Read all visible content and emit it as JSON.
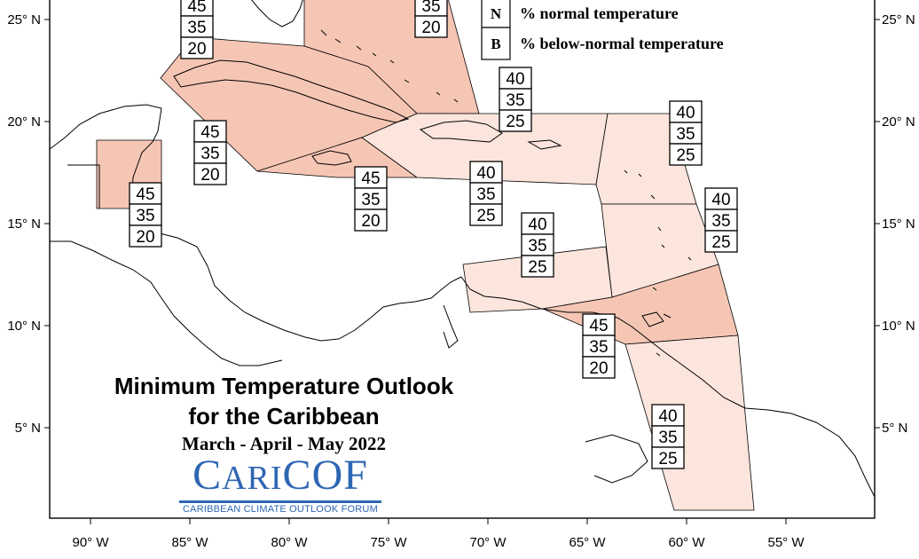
{
  "map": {
    "title_line1": "Minimum Temperature Outlook",
    "title_line2": "for the Caribbean",
    "period": "March - April - May 2022",
    "lat_labels": [
      "25° N",
      "20° N",
      "15° N",
      "10° N",
      "5° N"
    ],
    "lon_labels": [
      "90° W",
      "85° W",
      "80° W",
      "75° W",
      "70° W",
      "65° W",
      "60° W",
      "55° W"
    ],
    "colors": {
      "above_45": "#f6c6b4",
      "above_40": "#fbe5dc",
      "coast": "#000000"
    }
  },
  "legend": {
    "items": [
      {
        "key": "N",
        "text": "% normal temperature"
      },
      {
        "key": "B",
        "text": "% below-normal temperature"
      }
    ]
  },
  "logo": {
    "word_prefix_C": "C",
    "word_ari": "ARI",
    "word_cof": "COF",
    "subtitle": "CARIBBEAN CLIMATE OUTLOOK FORUM"
  },
  "boxes": [
    {
      "values": [
        "45",
        "35",
        "20"
      ]
    },
    {
      "values": [
        "35",
        "20"
      ]
    },
    {
      "values": [
        "40",
        "35",
        "25"
      ]
    },
    {
      "values": [
        "45",
        "35",
        "20"
      ]
    },
    {
      "values": [
        "45",
        "35",
        "20"
      ]
    },
    {
      "values": [
        "45",
        "35",
        "20"
      ]
    },
    {
      "values": [
        "40",
        "35",
        "25"
      ]
    },
    {
      "values": [
        "40",
        "35",
        "25"
      ]
    },
    {
      "values": [
        "40",
        "35",
        "25"
      ]
    },
    {
      "values": [
        "40",
        "35",
        "25"
      ]
    },
    {
      "values": [
        "45",
        "35",
        "20"
      ]
    },
    {
      "values": [
        "40",
        "35",
        "25"
      ]
    }
  ]
}
